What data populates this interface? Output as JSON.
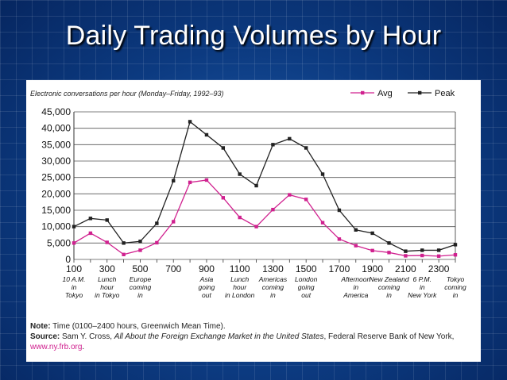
{
  "slide_title": "Daily Trading Volumes by Hour",
  "chart_data": {
    "type": "line",
    "subtitle": "Electronic conversations per hour (Monday–Friday, 1992–93)",
    "x": [
      100,
      200,
      300,
      400,
      500,
      600,
      700,
      800,
      900,
      1000,
      1100,
      1200,
      1300,
      1400,
      1500,
      1600,
      1700,
      1800,
      1900,
      2000,
      2100,
      2200,
      2300,
      2400
    ],
    "series": [
      {
        "name": "Avg",
        "color": "#d0218f",
        "values": [
          5000,
          8000,
          5200,
          1500,
          2800,
          5100,
          11500,
          23500,
          24200,
          18800,
          12800,
          10000,
          15200,
          19700,
          18300,
          11200,
          6200,
          4200,
          2700,
          2100,
          1100,
          1200,
          1000,
          1400
        ]
      },
      {
        "name": "Peak",
        "color": "#222222",
        "values": [
          10000,
          12500,
          12000,
          5000,
          5500,
          11000,
          24000,
          42000,
          38000,
          34000,
          26000,
          22500,
          35000,
          36800,
          34000,
          26000,
          15000,
          9000,
          8000,
          5000,
          2500,
          2800,
          2800,
          4500
        ]
      }
    ],
    "ylim": [
      0,
      45000
    ],
    "yticks": [
      0,
      5000,
      10000,
      15000,
      20000,
      25000,
      30000,
      35000,
      40000,
      45000
    ],
    "ytick_labels": [
      "0",
      "5,000",
      "10,000",
      "15,000",
      "20,000",
      "25,000",
      "30,000",
      "35,000",
      "40,000",
      "45,000"
    ],
    "xticks": [
      "100",
      "300",
      "500",
      "700",
      "900",
      "1100",
      "1300",
      "1500",
      "1700",
      "1900",
      "2100",
      "2300"
    ],
    "annotations": [
      {
        "at": 100,
        "lines": [
          "10 A.M.",
          "in",
          "Tokyo"
        ]
      },
      {
        "at": 300,
        "lines": [
          "Lunch",
          "hour",
          "in Tokyo"
        ]
      },
      {
        "at": 500,
        "lines": [
          "Europe",
          "coming",
          "in"
        ]
      },
      {
        "at": 900,
        "lines": [
          "Asia",
          "going",
          "out"
        ]
      },
      {
        "at": 1100,
        "lines": [
          "Lunch",
          "hour",
          "in London"
        ]
      },
      {
        "at": 1300,
        "lines": [
          "Americas",
          "coming",
          "in"
        ]
      },
      {
        "at": 1500,
        "lines": [
          "London",
          "going",
          "out"
        ]
      },
      {
        "at": 1800,
        "lines": [
          "Afternoon",
          "in",
          "America"
        ]
      },
      {
        "at": 2000,
        "lines": [
          "New Zealand",
          "coming",
          "in"
        ]
      },
      {
        "at": 2200,
        "lines": [
          "6 P.M.",
          "in",
          "New York"
        ]
      },
      {
        "at": 2400,
        "lines": [
          "Tokyo",
          "coming",
          "in"
        ]
      }
    ],
    "grid": true,
    "legend_position": "top-right"
  },
  "note": {
    "note_label": "Note:",
    "note_text": " Time (0100–2400 hours, Greenwich Mean Time).",
    "source_label": "Source:",
    "source_pre": " Sam Y. Cross, ",
    "source_title": "All About the Foreign Exchange Market in the United States",
    "source_post": ", Federal Reserve Bank of New York, ",
    "source_link": "www.ny.frb.org",
    "source_end": "."
  }
}
